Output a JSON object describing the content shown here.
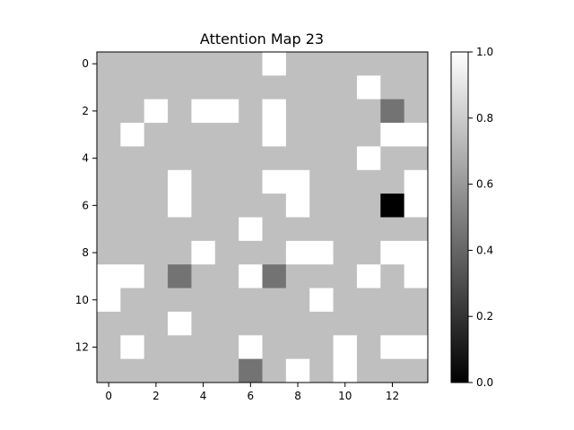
{
  "chart_data": {
    "type": "heatmap",
    "title": "Attention Map 23",
    "xlabel": "",
    "ylabel": "",
    "rows": 14,
    "cols": 14,
    "x_ticks": [
      0,
      2,
      4,
      6,
      8,
      10,
      12
    ],
    "y_ticks": [
      0,
      2,
      4,
      6,
      8,
      10,
      12
    ],
    "colormap": "gray",
    "vmin": 0.0,
    "vmax": 1.0,
    "colorbar_ticks": [
      "0.0",
      "0.2",
      "0.4",
      "0.6",
      "0.8",
      "1.0"
    ],
    "values": [
      [
        0.75,
        0.75,
        0.75,
        0.75,
        0.75,
        0.75,
        0.75,
        1.0,
        0.75,
        0.75,
        0.75,
        0.75,
        0.75,
        0.75
      ],
      [
        0.75,
        0.75,
        0.75,
        0.75,
        0.75,
        0.75,
        0.75,
        0.75,
        0.75,
        0.75,
        0.75,
        1.0,
        0.75,
        0.75
      ],
      [
        0.75,
        0.75,
        1.0,
        0.75,
        1.0,
        1.0,
        0.75,
        1.0,
        0.75,
        0.75,
        0.75,
        0.75,
        0.45,
        0.75
      ],
      [
        0.75,
        1.0,
        0.75,
        0.75,
        0.75,
        0.75,
        0.75,
        1.0,
        0.75,
        0.75,
        0.75,
        0.75,
        1.0,
        1.0
      ],
      [
        0.75,
        0.75,
        0.75,
        0.75,
        0.75,
        0.75,
        0.75,
        0.75,
        0.75,
        0.75,
        0.75,
        1.0,
        0.75,
        0.75
      ],
      [
        0.75,
        0.75,
        0.75,
        1.0,
        0.75,
        0.75,
        0.75,
        1.0,
        1.0,
        0.75,
        0.75,
        0.75,
        0.75,
        1.0
      ],
      [
        0.75,
        0.75,
        0.75,
        1.0,
        0.75,
        0.75,
        0.75,
        0.75,
        1.0,
        0.75,
        0.75,
        0.75,
        0.0,
        1.0
      ],
      [
        0.75,
        0.75,
        0.75,
        0.75,
        0.75,
        0.75,
        1.0,
        0.75,
        0.75,
        0.75,
        0.75,
        0.75,
        0.75,
        0.75
      ],
      [
        0.75,
        0.75,
        0.75,
        0.75,
        1.0,
        0.75,
        0.75,
        0.75,
        1.0,
        1.0,
        0.75,
        0.75,
        1.0,
        1.0
      ],
      [
        1.0,
        1.0,
        0.75,
        0.45,
        0.75,
        0.75,
        1.0,
        0.45,
        0.75,
        0.75,
        0.75,
        1.0,
        0.75,
        1.0
      ],
      [
        1.0,
        0.75,
        0.75,
        0.75,
        0.75,
        0.75,
        0.75,
        0.75,
        0.75,
        1.0,
        0.75,
        0.75,
        0.75,
        0.75
      ],
      [
        0.75,
        0.75,
        0.75,
        1.0,
        0.75,
        0.75,
        0.75,
        0.75,
        0.75,
        0.75,
        0.75,
        0.75,
        0.75,
        0.75
      ],
      [
        0.75,
        1.0,
        0.75,
        0.75,
        0.75,
        0.75,
        1.0,
        0.75,
        0.75,
        0.75,
        1.0,
        0.75,
        1.0,
        1.0
      ],
      [
        0.75,
        0.75,
        0.75,
        0.75,
        0.75,
        0.75,
        0.45,
        0.75,
        1.0,
        0.75,
        1.0,
        0.75,
        0.75,
        0.75
      ]
    ]
  }
}
